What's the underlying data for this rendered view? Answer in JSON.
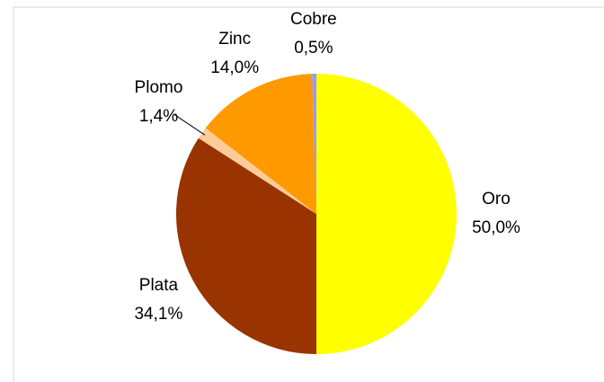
{
  "chart_data": {
    "type": "pie",
    "categories": [
      "Oro",
      "Plata",
      "Plomo",
      "Zinc",
      "Cobre"
    ],
    "values": [
      50.0,
      34.1,
      1.4,
      14.0,
      0.5
    ],
    "value_labels": [
      "50,0%",
      "34,1%",
      "1,4%",
      "14,0%",
      "0,5%"
    ],
    "colors": [
      "#ffff00",
      "#993300",
      "#ffcc99",
      "#ff9900",
      "#9999ff"
    ]
  }
}
